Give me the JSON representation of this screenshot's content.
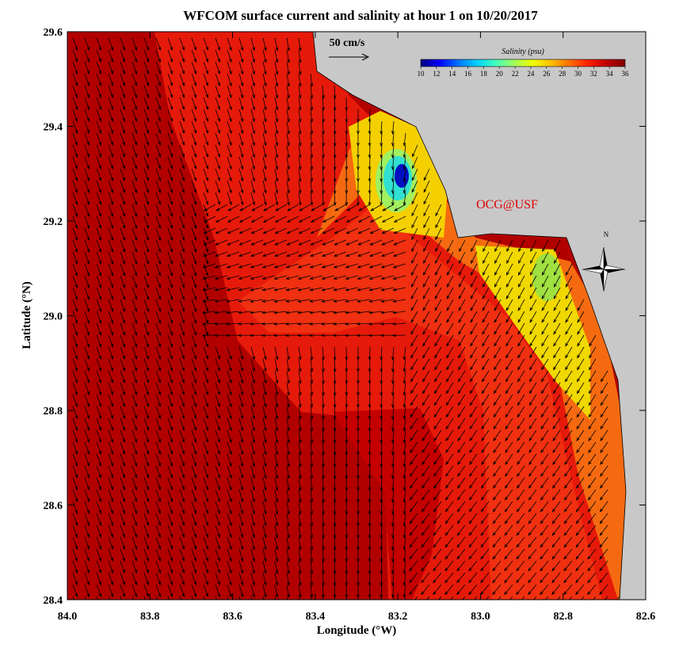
{
  "chart_data": {
    "type": "map",
    "title": "WFCOM surface current and salinity at hour 1 on 10/20/2017",
    "xlabel": "Longitude (°W)",
    "ylabel": "Latitude (°N)",
    "xlim": [
      84.0,
      82.6
    ],
    "xticks": [
      {
        "value": 84.0,
        "label": "84.0"
      },
      83.8,
      83.6,
      83.4,
      83.2,
      {
        "value": 83.0,
        "label": "83.0"
      },
      82.8,
      82.6
    ],
    "ylim": [
      28.4,
      29.6
    ],
    "yticks": [
      28.4,
      28.6,
      28.8,
      {
        "value": 29.0,
        "label": "29.0"
      },
      29.2,
      29.4,
      29.6
    ],
    "scale_arrow": "50 cm/s",
    "annotation": "OCG@USF",
    "compass": "N",
    "colorbar": {
      "title": "Salinity (psu)",
      "lim": [
        10,
        36
      ],
      "ticks": [
        10,
        12,
        14,
        16,
        18,
        20,
        22,
        24,
        26,
        28,
        30,
        32,
        34,
        36
      ],
      "colors": [
        "#00007f",
        "#0000ff",
        "#0070ff",
        "#00d0ff",
        "#40ffc0",
        "#a0ff60",
        "#f0ff00",
        "#ffc000",
        "#ff7000",
        "#ff2000",
        "#c00000",
        "#800000"
      ]
    }
  }
}
